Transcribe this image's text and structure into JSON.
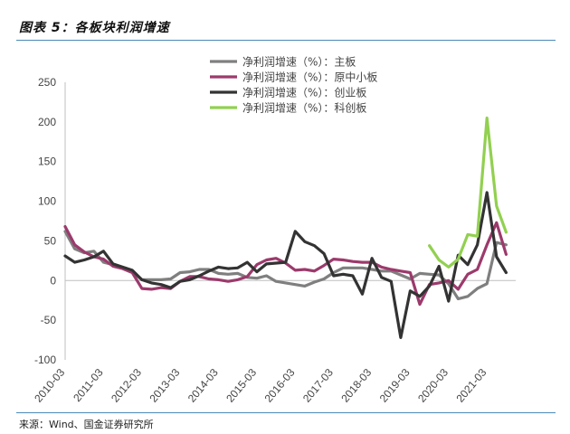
{
  "header": {
    "title": "图表 5：各板块利润增速"
  },
  "footer": {
    "source": "来源：Wind、国金证券研究所"
  },
  "chart_data": {
    "type": "line",
    "xlabel": "",
    "ylabel": "",
    "ylim": [
      -100,
      250
    ],
    "yticks": [
      -100,
      -50,
      0,
      50,
      100,
      150,
      200,
      250
    ],
    "x_tick_labels": [
      "2010-03",
      "2011-03",
      "2012-03",
      "2013-03",
      "2014-03",
      "2015-03",
      "2016-03",
      "2017-03",
      "2018-03",
      "2019-03",
      "2020-03",
      "2021-03"
    ],
    "x_range": [
      2010.0,
      2021.75
    ],
    "legend_position": "top-center",
    "grid": false,
    "series": [
      {
        "name": "净利润增速（%）：主板",
        "color": "#7f7f7f",
        "x": [
          2010.0,
          2010.25,
          2010.5,
          2010.75,
          2011.0,
          2011.25,
          2011.5,
          2011.75,
          2012.0,
          2012.25,
          2012.5,
          2012.75,
          2013.0,
          2013.25,
          2013.5,
          2013.75,
          2014.0,
          2014.25,
          2014.5,
          2014.75,
          2015.0,
          2015.25,
          2015.5,
          2015.75,
          2016.0,
          2016.25,
          2016.5,
          2016.75,
          2017.0,
          2017.25,
          2017.5,
          2017.75,
          2018.0,
          2018.25,
          2018.5,
          2018.75,
          2019.0,
          2019.25,
          2019.5,
          2019.75,
          2020.0,
          2020.25,
          2020.5,
          2020.75,
          2021.0,
          2021.25,
          2021.5
        ],
        "values": [
          62,
          40,
          35,
          37,
          23,
          20,
          16,
          11,
          1,
          1,
          1,
          2,
          10,
          11,
          14,
          14,
          9,
          8,
          9,
          4,
          3,
          6,
          -1,
          -3,
          -5,
          -7,
          -2,
          2,
          10,
          16,
          16,
          16,
          14,
          12,
          12,
          7,
          2,
          9,
          8,
          7,
          -4,
          -23,
          -20,
          -10,
          -4,
          48,
          45
        ]
      },
      {
        "name": "净利润增速（%）：原中小板",
        "color": "#9c3a6c",
        "x": [
          2010.0,
          2010.25,
          2010.5,
          2010.75,
          2011.0,
          2011.25,
          2011.5,
          2011.75,
          2012.0,
          2012.25,
          2012.5,
          2012.75,
          2013.0,
          2013.25,
          2013.5,
          2013.75,
          2014.0,
          2014.25,
          2014.5,
          2014.75,
          2015.0,
          2015.25,
          2015.5,
          2015.75,
          2016.0,
          2016.25,
          2016.5,
          2016.75,
          2017.0,
          2017.25,
          2017.5,
          2017.75,
          2018.0,
          2018.25,
          2018.5,
          2018.75,
          2019.0,
          2019.25,
          2019.5,
          2019.75,
          2020.0,
          2020.25,
          2020.5,
          2020.75,
          2021.0,
          2021.25,
          2021.5
        ],
        "values": [
          68,
          45,
          36,
          30,
          27,
          18,
          15,
          10,
          -10,
          -11,
          -9,
          -10,
          -1,
          5,
          5,
          2,
          1,
          -1,
          1,
          5,
          20,
          26,
          28,
          22,
          13,
          14,
          12,
          19,
          27,
          26,
          24,
          23,
          23,
          17,
          14,
          12,
          10,
          -30,
          -5,
          -3,
          0,
          -11,
          8,
          14,
          45,
          73,
          33
        ]
      },
      {
        "name": "净利润增速（%）：创业板",
        "color": "#333333",
        "x": [
          2010.0,
          2010.25,
          2010.5,
          2010.75,
          2011.0,
          2011.25,
          2011.5,
          2011.75,
          2012.0,
          2012.25,
          2012.5,
          2012.75,
          2013.0,
          2013.25,
          2013.5,
          2013.75,
          2014.0,
          2014.25,
          2014.5,
          2014.75,
          2015.0,
          2015.25,
          2015.5,
          2015.75,
          2016.0,
          2016.25,
          2016.5,
          2016.75,
          2017.0,
          2017.25,
          2017.5,
          2017.75,
          2018.0,
          2018.25,
          2018.5,
          2018.75,
          2019.0,
          2019.25,
          2019.5,
          2019.75,
          2020.0,
          2020.25,
          2020.5,
          2020.75,
          2021.0,
          2021.25,
          2021.5
        ],
        "values": [
          31,
          23,
          26,
          30,
          37,
          21,
          17,
          13,
          1,
          -3,
          -5,
          -9,
          -1,
          1,
          6,
          12,
          17,
          15,
          16,
          23,
          11,
          21,
          22,
          23,
          62,
          49,
          44,
          34,
          6,
          8,
          6,
          -17,
          28,
          4,
          -1,
          -72,
          -13,
          -20,
          -7,
          18,
          -26,
          32,
          20,
          45,
          111,
          30,
          10
        ]
      },
      {
        "name": "净利润增速（%）：科创板",
        "color": "#92d050",
        "x": [
          2019.5,
          2019.75,
          2020.0,
          2020.25,
          2020.5,
          2020.75,
          2021.0,
          2021.25,
          2021.5
        ],
        "values": [
          44,
          26,
          17,
          27,
          58,
          56,
          205,
          94,
          61
        ]
      }
    ]
  }
}
